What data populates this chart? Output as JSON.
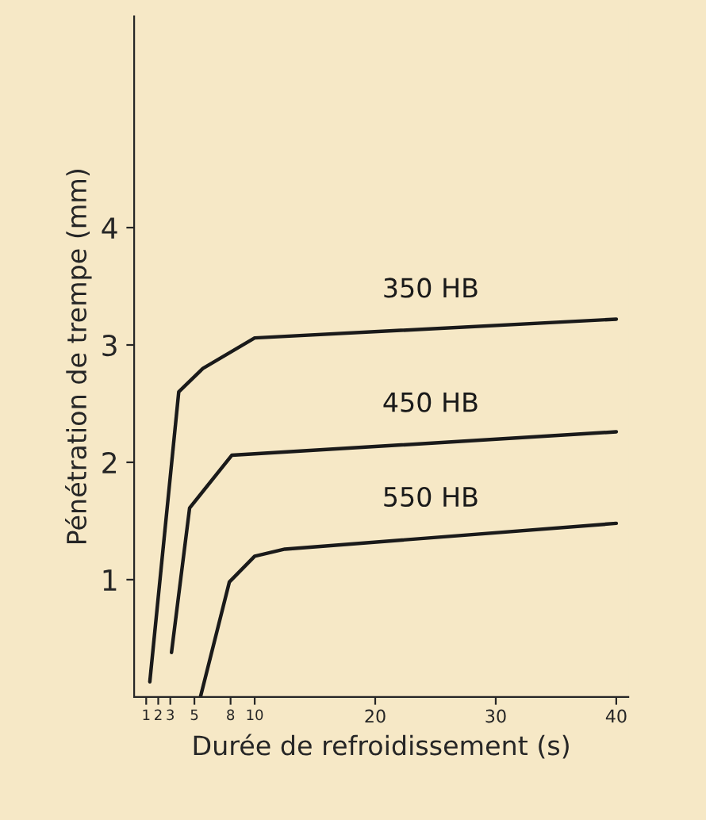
{
  "chart_data": {
    "type": "line",
    "xlabel": "Durée de refroidissement (s)",
    "ylabel": "Pénétration de trempe (mm)",
    "xlim": [
      0,
      41
    ],
    "ylim": [
      0,
      5.8
    ],
    "xticks": [
      1,
      2,
      3,
      5,
      8,
      10,
      20,
      30,
      40
    ],
    "yticks": [
      1,
      2,
      3,
      4
    ],
    "grid": false,
    "legend": false,
    "series": [
      {
        "name": "350 HB",
        "color": "#1a1a1a",
        "x": [
          1.3,
          3.7,
          5.7,
          10,
          40
        ],
        "values": [
          0.13,
          2.6,
          2.8,
          3.06,
          3.22
        ]
      },
      {
        "name": "450 HB",
        "color": "#1a1a1a",
        "x": [
          3.1,
          4.6,
          8.1,
          40
        ],
        "values": [
          0.38,
          1.61,
          2.06,
          2.26
        ]
      },
      {
        "name": "550 HB",
        "color": "#1a1a1a",
        "x": [
          5.5,
          7.9,
          10,
          12.5,
          40
        ],
        "values": [
          0,
          0.98,
          1.2,
          1.26,
          1.48
        ]
      }
    ]
  }
}
